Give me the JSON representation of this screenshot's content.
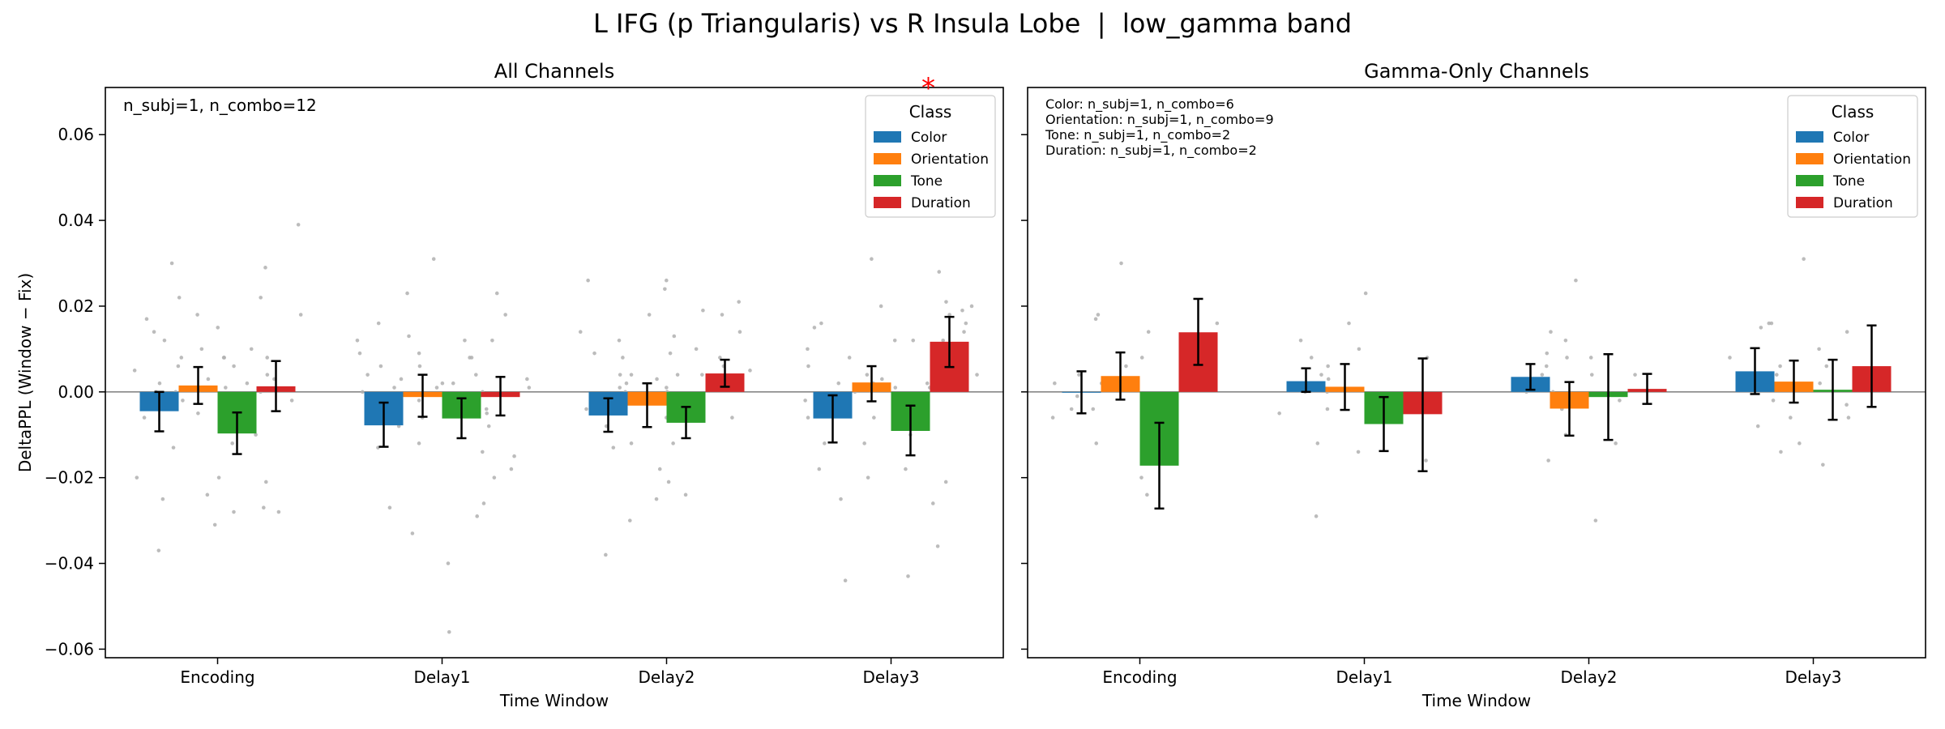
{
  "figure_title": "L IFG (p Triangularis) vs R Insula Lobe  |  low_gamma band",
  "chart_data": [
    {
      "type": "bar",
      "title": "All Channels",
      "xlabel": "Time Window",
      "ylabel": "DeltaPPL (Window − Fix)",
      "ylim": [
        -0.062,
        0.071
      ],
      "yticks": [
        0.06,
        0.04,
        0.02,
        0.0,
        -0.02,
        -0.04,
        -0.06
      ],
      "ytick_labels": [
        "0.06",
        "0.04",
        "0.02",
        "0.00",
        "−0.02",
        "−0.04",
        "−0.06"
      ],
      "categories": [
        "Encoding",
        "Delay1",
        "Delay2",
        "Delay3"
      ],
      "annotation": "n_subj=1, n_combo=12",
      "significance_marker": {
        "text": "*",
        "category": "Delay3",
        "color": "#ff0000"
      },
      "legend": {
        "title": "Class",
        "placement": "top-right"
      },
      "series": [
        {
          "name": "Color",
          "color": "#1f77b4",
          "values": [
            -0.0045,
            -0.0078,
            -0.0055,
            -0.0062
          ],
          "err_low": [
            -0.0092,
            -0.0128,
            -0.0093,
            -0.0118
          ],
          "err_high": [
            0.0,
            -0.0025,
            -0.0015,
            -0.0008
          ]
        },
        {
          "name": "Orientation",
          "color": "#ff7f0e",
          "values": [
            0.0015,
            -0.0012,
            -0.0032,
            0.0022
          ],
          "err_low": [
            -0.0028,
            -0.0058,
            -0.0082,
            -0.0022
          ],
          "err_high": [
            0.0058,
            0.004,
            0.002,
            0.006
          ]
        },
        {
          "name": "Tone",
          "color": "#2ca02c",
          "values": [
            -0.0097,
            -0.0062,
            -0.0072,
            -0.0091
          ],
          "err_low": [
            -0.0145,
            -0.0108,
            -0.0108,
            -0.0148
          ],
          "err_high": [
            -0.0048,
            -0.0015,
            -0.0035,
            -0.0032
          ]
        },
        {
          "name": "Duration",
          "color": "#d62728",
          "values": [
            0.0013,
            -0.0012,
            0.0043,
            0.0117
          ],
          "err_low": [
            -0.0045,
            -0.0055,
            0.0012,
            0.0058
          ],
          "err_high": [
            0.0072,
            0.0035,
            0.0075,
            0.0175
          ]
        }
      ],
      "points": [
        [
          [
            -0.037,
            -0.025,
            -0.02,
            -0.006,
            0.0,
            0.002,
            0.005,
            0.008,
            0.012,
            0.014,
            0.017,
            0.0
          ],
          [
            -0.024,
            -0.013,
            -0.005,
            -0.002,
            0.003,
            0.006,
            0.01,
            0.018,
            0.022,
            0.03,
            0.008,
            0.001
          ],
          [
            -0.031,
            -0.028,
            -0.027,
            -0.02,
            -0.012,
            -0.004,
            0.002,
            0.008,
            0.015,
            0.029,
            0.006,
            -0.001
          ],
          [
            -0.028,
            -0.021,
            -0.01,
            -0.002,
            0.004,
            0.008,
            0.01,
            0.018,
            0.022,
            0.039,
            0.003,
            0.0
          ]
        ],
        [
          [
            -0.027,
            -0.013,
            -0.008,
            -0.003,
            0.0,
            0.004,
            0.006,
            0.009,
            0.012,
            0.016,
            0.001,
            -0.002
          ],
          [
            -0.056,
            -0.033,
            -0.012,
            -0.006,
            -0.002,
            0.002,
            0.006,
            0.009,
            0.013,
            0.023,
            0.001,
            0.003
          ],
          [
            -0.04,
            -0.029,
            -0.014,
            -0.008,
            -0.004,
            0.0,
            0.004,
            0.008,
            0.012,
            0.031,
            -0.001,
            0.002
          ],
          [
            -0.026,
            -0.02,
            -0.018,
            -0.015,
            -0.005,
            0.003,
            0.008,
            0.012,
            0.018,
            0.023,
            -0.002,
            0.001
          ]
        ],
        [
          [
            -0.038,
            -0.03,
            -0.013,
            -0.008,
            -0.004,
            0.0,
            0.004,
            0.009,
            0.014,
            0.026,
            -0.002,
            0.001
          ],
          [
            -0.025,
            -0.021,
            -0.012,
            -0.006,
            -0.002,
            0.004,
            0.008,
            0.012,
            0.018,
            0.026,
            0.0,
            0.002
          ],
          [
            -0.024,
            -0.018,
            -0.012,
            -0.006,
            -0.002,
            0.004,
            0.009,
            0.013,
            0.019,
            0.024,
            0.001,
            0.003
          ],
          [
            -0.006,
            -0.002,
            0.002,
            0.004,
            0.006,
            0.008,
            0.01,
            0.014,
            0.018,
            0.021,
            0.003,
            0.005
          ]
        ],
        [
          [
            -0.044,
            -0.025,
            -0.018,
            -0.012,
            -0.006,
            0.0,
            0.006,
            0.01,
            0.015,
            0.016,
            -0.002,
            0.002
          ],
          [
            -0.02,
            -0.012,
            -0.006,
            -0.002,
            0.002,
            0.004,
            0.008,
            0.012,
            0.02,
            0.031,
            0.001,
            0.003
          ],
          [
            -0.043,
            -0.036,
            -0.026,
            -0.018,
            -0.01,
            -0.004,
            0.002,
            0.008,
            0.012,
            0.028,
            -0.001,
            0.001
          ],
          [
            -0.021,
            -0.003,
            0.004,
            0.008,
            0.01,
            0.012,
            0.014,
            0.016,
            0.018,
            0.021,
            0.02,
            0.019
          ]
        ]
      ]
    },
    {
      "type": "bar",
      "title": "Gamma-Only Channels",
      "xlabel": "Time Window",
      "ylabel": "",
      "ylim": [
        -0.062,
        0.071
      ],
      "yticks": [
        0.06,
        0.04,
        0.02,
        0.0,
        -0.02,
        -0.04,
        -0.06
      ],
      "categories": [
        "Encoding",
        "Delay1",
        "Delay2",
        "Delay3"
      ],
      "annotation_lines": [
        "Color: n_subj=1, n_combo=6",
        "Orientation: n_subj=1, n_combo=9",
        "Tone: n_subj=1, n_combo=2",
        "Duration: n_subj=1, n_combo=2"
      ],
      "legend": {
        "title": "Class",
        "placement": "top-right"
      },
      "series": [
        {
          "name": "Color",
          "color": "#1f77b4",
          "values": [
            0.0,
            0.0025,
            0.0035,
            0.0048
          ],
          "err_low": [
            -0.005,
            0.0,
            0.0005,
            -0.0005
          ],
          "err_high": [
            0.0048,
            0.0055,
            0.0065,
            0.0102
          ]
        },
        {
          "name": "Orientation",
          "color": "#ff7f0e",
          "values": [
            0.0037,
            0.0012,
            -0.0039,
            0.0024
          ],
          "err_low": [
            -0.0018,
            -0.0042,
            -0.0102,
            -0.0025
          ],
          "err_high": [
            0.0092,
            0.0065,
            0.0023,
            0.0073
          ]
        },
        {
          "name": "Tone",
          "color": "#2ca02c",
          "values": [
            -0.0172,
            -0.0075,
            -0.0012,
            0.0005
          ],
          "err_low": [
            -0.0272,
            -0.0138,
            -0.0112,
            -0.0065
          ],
          "err_high": [
            -0.0072,
            -0.0012,
            0.0088,
            0.0075
          ]
        },
        {
          "name": "Duration",
          "color": "#d62728",
          "values": [
            0.0139,
            -0.0052,
            0.0007,
            0.006
          ],
          "err_low": [
            0.0063,
            -0.0185,
            -0.0028,
            -0.0035
          ],
          "err_high": [
            0.0217,
            0.0078,
            0.0042,
            0.0155
          ]
        }
      ],
      "points": [
        [
          [
            -0.006,
            -0.001,
            0.004,
            0.002,
            0.017,
            -0.004
          ],
          [
            -0.024,
            -0.012,
            -0.004,
            0.002,
            0.008,
            0.014,
            0.018,
            0.03,
            0.006
          ],
          [
            -0.02,
            -0.014
          ],
          [
            0.012,
            0.016
          ]
        ],
        [
          [
            -0.005,
            0.0,
            0.002,
            0.004,
            0.008,
            0.012
          ],
          [
            -0.029,
            -0.012,
            -0.004,
            0.0,
            0.003,
            0.006,
            0.01,
            0.016,
            0.023
          ],
          [
            -0.014,
            -0.001
          ],
          [
            -0.016,
            0.008
          ]
        ],
        [
          [
            0.0,
            0.002,
            0.004,
            0.006,
            0.009,
            0.014
          ],
          [
            -0.03,
            -0.016,
            -0.01,
            -0.004,
            0.0,
            0.004,
            0.008,
            0.012,
            0.026
          ],
          [
            -0.012,
            0.008
          ],
          [
            -0.002,
            0.004
          ]
        ],
        [
          [
            -0.014,
            -0.008,
            0.004,
            0.008,
            0.015,
            0.016
          ],
          [
            -0.017,
            -0.012,
            -0.006,
            -0.002,
            0.002,
            0.006,
            0.01,
            0.016,
            0.031
          ],
          [
            -0.006,
            0.006
          ],
          [
            -0.003,
            0.014
          ]
        ]
      ]
    }
  ]
}
